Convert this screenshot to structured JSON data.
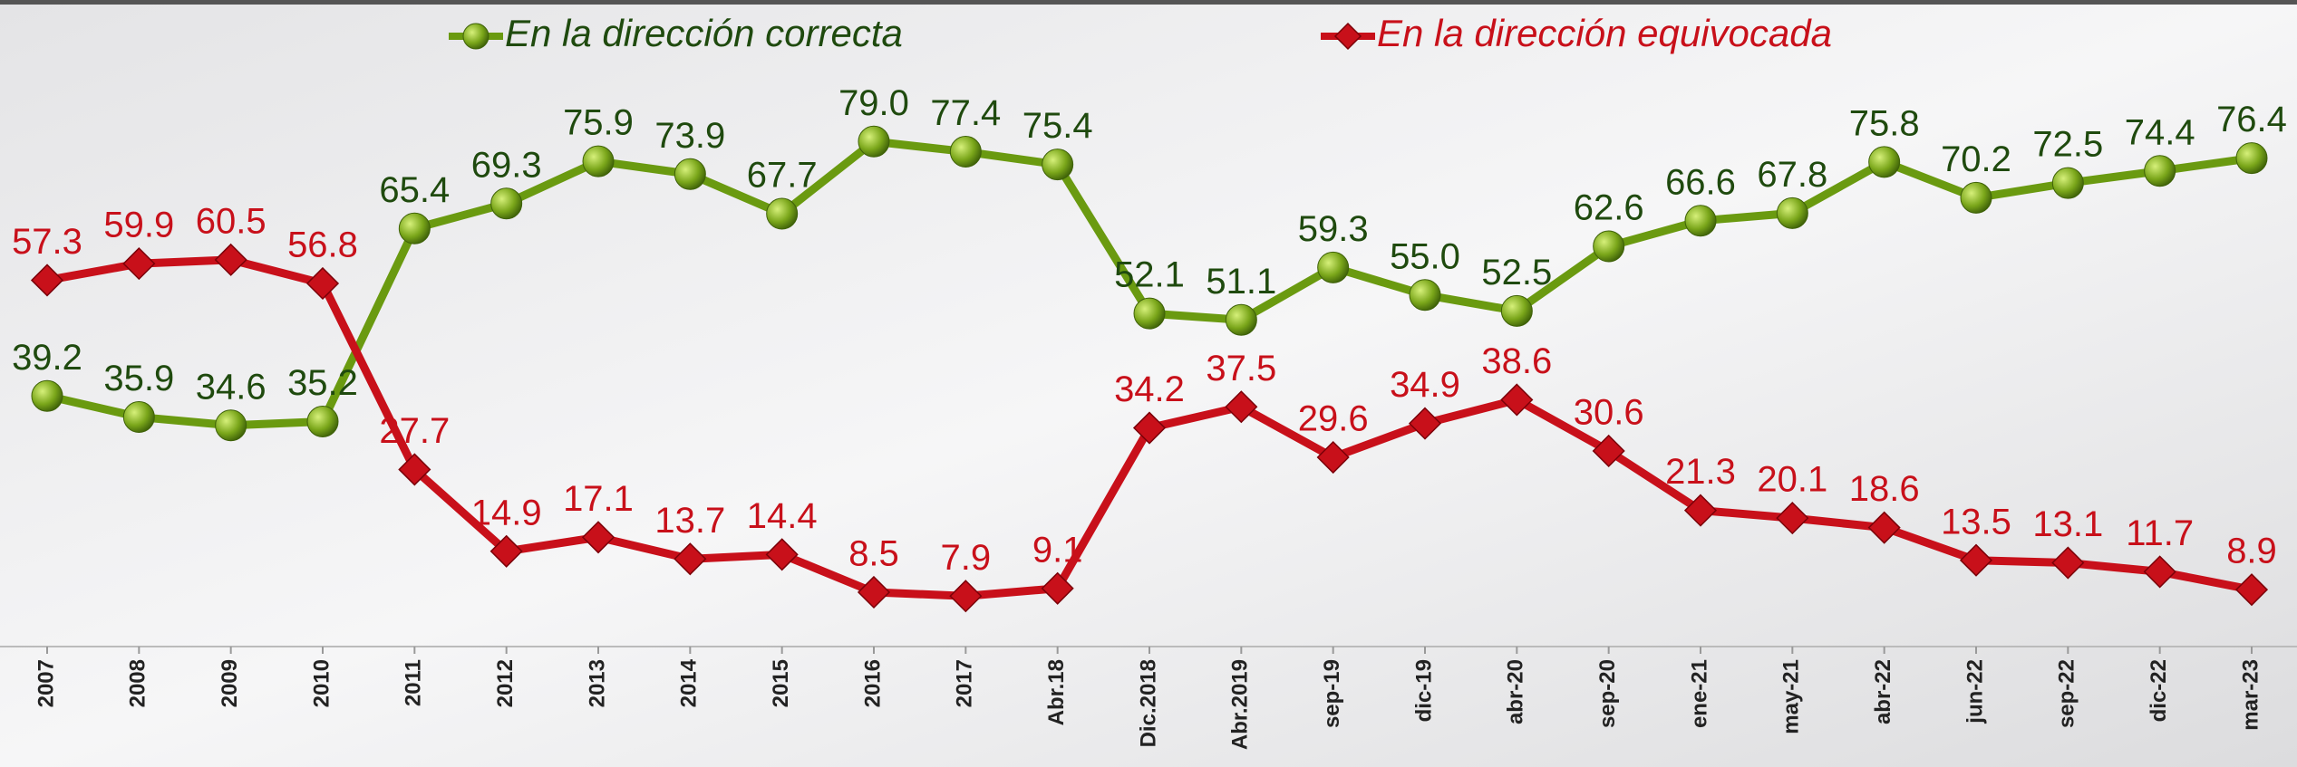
{
  "chart_data": {
    "type": "line",
    "categories": [
      "2007",
      "2008",
      "2009",
      "2010",
      "2011",
      "2012",
      "2013",
      "2014",
      "2015",
      "2016",
      "2017",
      "Abr.18",
      "Dic.2018",
      "Abr.2019",
      "sep-19",
      "dic-19",
      "abr-20",
      "sep-20",
      "ene-21",
      "may-21",
      "abr-22",
      "jun-22",
      "sep-22",
      "dic-22",
      "mar-23"
    ],
    "series": [
      {
        "name": "En la dirección correcta",
        "color": "#6a9a10",
        "label_color": "#1f4a0e",
        "marker": "circle",
        "values": [
          39.2,
          35.9,
          34.6,
          35.2,
          65.4,
          69.3,
          75.9,
          73.9,
          67.7,
          79.0,
          77.4,
          75.4,
          52.1,
          51.1,
          59.3,
          55.0,
          52.5,
          62.6,
          66.6,
          67.8,
          75.8,
          70.2,
          72.5,
          74.4,
          76.4
        ],
        "value_labels": [
          "39.2",
          "35.9",
          "34.6",
          "35.2",
          "65.4",
          "69.3",
          "75.9",
          "73.9",
          "67.7",
          "79.0",
          "77.4",
          "75.4",
          "52.1",
          "51.1",
          "59.3",
          "55.0",
          "52.5",
          "62.6",
          "66.6",
          "67.8",
          "75.8",
          "70.2",
          "72.5",
          "74.4",
          "76.4"
        ]
      },
      {
        "name": "En la dirección equivocada",
        "color": "#c8101a",
        "label_color": "#c8101a",
        "marker": "diamond",
        "values": [
          57.3,
          59.9,
          60.5,
          56.8,
          27.7,
          14.9,
          17.1,
          13.7,
          14.4,
          8.5,
          7.9,
          9.1,
          34.2,
          37.5,
          29.6,
          34.9,
          38.6,
          30.6,
          21.3,
          20.1,
          18.6,
          13.5,
          13.1,
          11.7,
          8.9
        ],
        "value_labels": [
          "57.3",
          "59.9",
          "60.5",
          "56.8",
          "27.7",
          "14.9",
          "17.1",
          "13.7",
          "14.4",
          "8.5",
          "7.9",
          "9.1",
          "34.2",
          "37.5",
          "29.6",
          "34.9",
          "38.6",
          "30.6",
          "21.3",
          "20.1",
          "18.6",
          "13.5",
          "13.1",
          "11.7",
          "8.9"
        ]
      }
    ],
    "ylim": [
      0,
      100
    ]
  }
}
